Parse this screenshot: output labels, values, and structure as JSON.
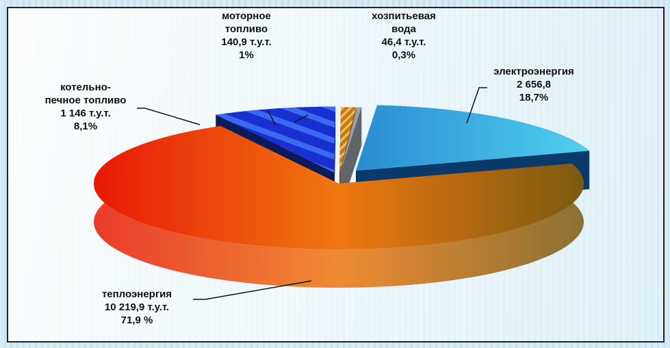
{
  "chart_data": {
    "type": "pie3d",
    "categories": [
      "электроэнергия",
      "теплоэнергия",
      "котельно-\nпечное топливо",
      "моторное\nтопливо",
      "хозпитьевая\nвода"
    ],
    "values": [
      18.7,
      71.9,
      8.1,
      1,
      0.3
    ],
    "value_labels": [
      "18,7%",
      "71,9 %",
      "8,1%",
      "1%",
      "0,3%"
    ],
    "amounts": [
      2656.8,
      10219.9,
      1146,
      140.9,
      46.4
    ],
    "amount_labels": [
      "2 656,8",
      "10  219,9 т.у.т.",
      "1 146 т.у.т.",
      "140,9 т.у.т.",
      "46,4 т.у.т."
    ],
    "colors": [
      "#2aa8dc",
      "#f07810",
      "#1830d0",
      "#c87a18",
      "#9aa0a8"
    ]
  }
}
